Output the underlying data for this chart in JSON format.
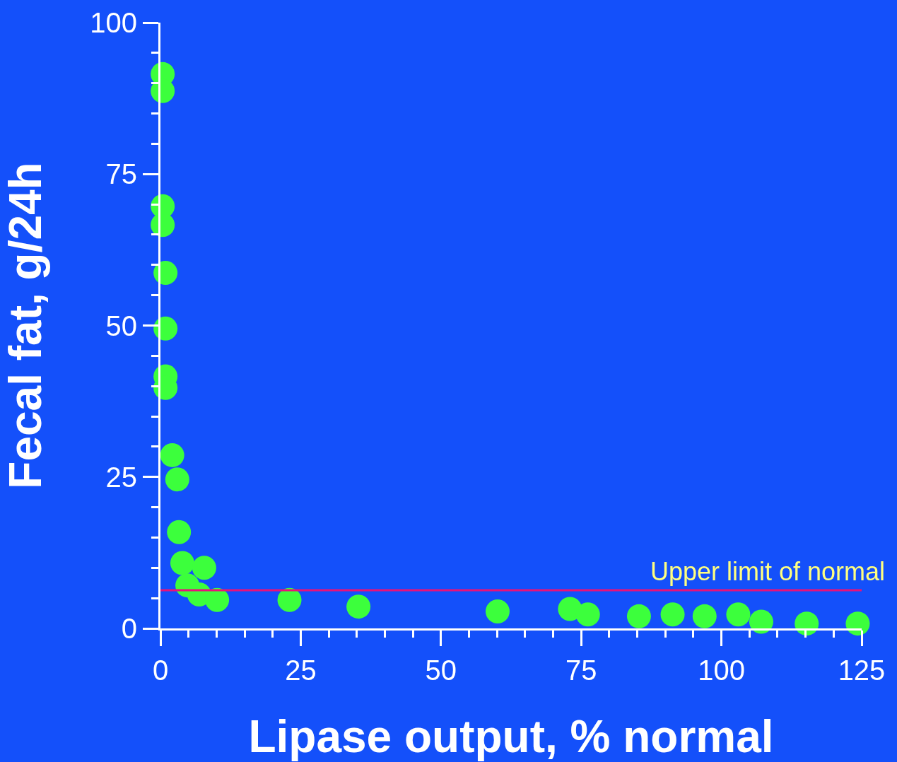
{
  "chart_data": {
    "type": "scatter",
    "xlabel": "Lipase output, % normal",
    "ylabel": "Fecal fat, g/24h",
    "x": [
      0.4,
      0.4,
      0.4,
      0.4,
      0.9,
      0.9,
      0.9,
      0.9,
      2.1,
      3.0,
      3.3,
      3.9,
      7.8,
      4.8,
      6.9,
      10.1,
      23.0,
      35.3,
      60.1,
      73.0,
      76.2,
      85.3,
      91.3,
      97.0,
      103.0,
      107.1,
      115.2,
      124.3
    ],
    "values": [
      91.5,
      88.7,
      69.7,
      66.6,
      58.7,
      49.5,
      41.6,
      39.7,
      28.6,
      24.6,
      15.9,
      10.8,
      10.0,
      7.1,
      5.6,
      4.7,
      4.7,
      3.6,
      2.8,
      3.2,
      2.3,
      2.0,
      2.3,
      2.0,
      2.3,
      1.1,
      0.8,
      0.8
    ],
    "color": "#3cff3c",
    "marker": "circle",
    "xlim": [
      0,
      125
    ],
    "xticks": [
      0,
      25,
      50,
      75,
      100,
      125
    ],
    "ylim": [
      0,
      100
    ],
    "yticks": [
      0,
      25,
      50,
      75,
      100
    ],
    "ref_lines": [
      {
        "axis": "y",
        "value": 6.3,
        "label": "Upper limit of normal",
        "color": "#e8127a"
      }
    ]
  }
}
